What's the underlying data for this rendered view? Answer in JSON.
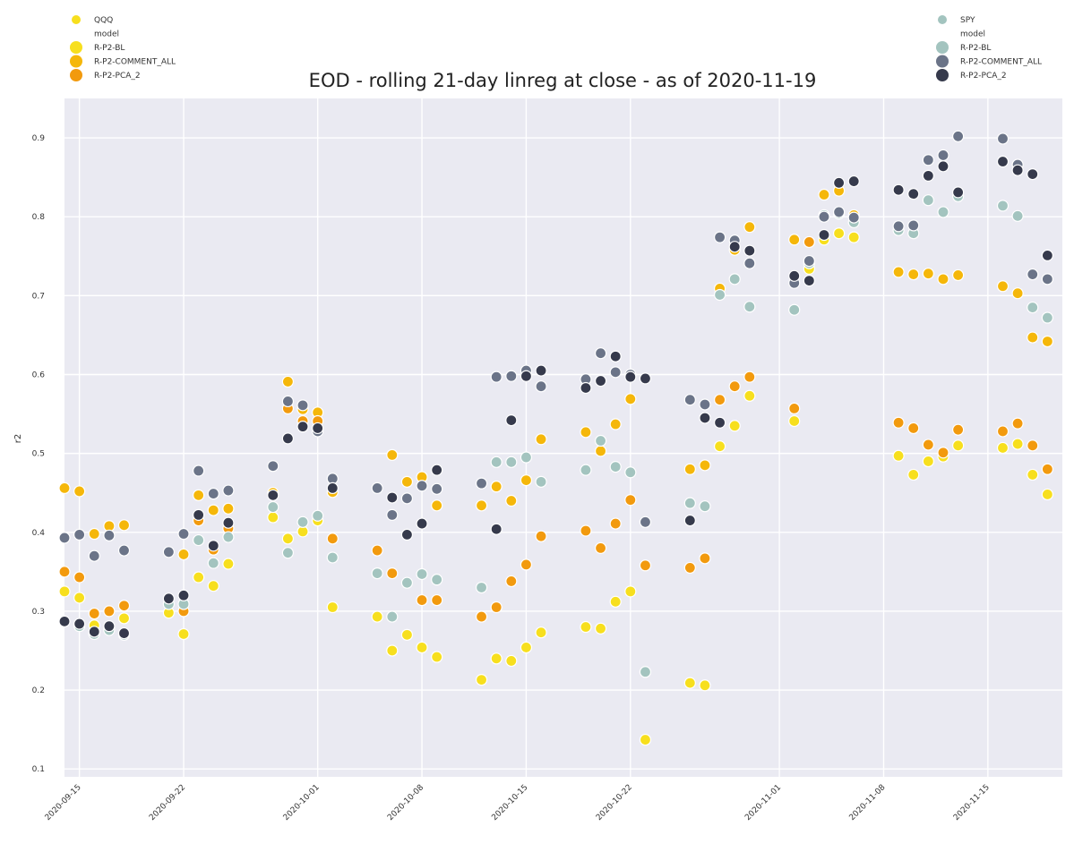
{
  "chart_data": {
    "type": "scatter",
    "title": "EOD - rolling 21-day linreg at close - as of 2020-11-19",
    "xlabel": "",
    "ylabel": "r2",
    "xlim": [
      "2020-09-14",
      "2020-11-20"
    ],
    "ylim": [
      0.09,
      0.95
    ],
    "yticks": [
      0.1,
      0.2,
      0.3,
      0.4,
      0.5,
      0.6,
      0.7,
      0.8,
      0.9
    ],
    "xticks": [
      "2020-09-15",
      "2020-09-22",
      "2020-10-01",
      "2020-10-08",
      "2020-10-15",
      "2020-10-22",
      "2020-11-01",
      "2020-11-08",
      "2020-11-15"
    ],
    "grid": true,
    "background": "#eaeaf2",
    "legends": [
      {
        "placement": "top-left",
        "entries": [
          {
            "label": "QQQ",
            "color": "#f7df1e",
            "kind": "hue"
          },
          {
            "label": "model",
            "color": null,
            "kind": "header"
          },
          {
            "label": "R-P2-BL",
            "color": "#f7df1e",
            "kind": "size"
          },
          {
            "label": "R-P2-COMMENT_ALL",
            "color": "#f5b70a",
            "kind": "size"
          },
          {
            "label": "R-P2-PCA_2",
            "color": "#f29a0e",
            "kind": "size"
          }
        ]
      },
      {
        "placement": "top-right",
        "entries": [
          {
            "label": "SPY",
            "color": "#a3c4bf",
            "kind": "hue"
          },
          {
            "label": "model",
            "color": null,
            "kind": "header"
          },
          {
            "label": "R-P2-BL",
            "color": "#a3c4bf",
            "kind": "size"
          },
          {
            "label": "R-P2-COMMENT_ALL",
            "color": "#6b7488",
            "kind": "size"
          },
          {
            "label": "R-P2-PCA_2",
            "color": "#363a4c",
            "kind": "size"
          }
        ]
      }
    ],
    "series": [
      {
        "name": "R-P2-BL",
        "ticker": "QQQ",
        "color": "#f7df1e",
        "x": [
          "2020-09-14",
          "2020-09-15",
          "2020-09-16",
          "2020-09-17",
          "2020-09-18",
          "2020-09-21",
          "2020-09-22",
          "2020-09-23",
          "2020-09-24",
          "2020-09-25",
          "2020-09-28",
          "2020-09-29",
          "2020-09-30",
          "2020-10-01",
          "2020-10-02",
          "2020-10-05",
          "2020-10-06",
          "2020-10-07",
          "2020-10-08",
          "2020-10-09",
          "2020-10-12",
          "2020-10-13",
          "2020-10-14",
          "2020-10-15",
          "2020-10-16",
          "2020-10-19",
          "2020-10-20",
          "2020-10-21",
          "2020-10-22",
          "2020-10-23",
          "2020-10-26",
          "2020-10-27",
          "2020-10-28",
          "2020-10-29",
          "2020-10-30",
          "2020-11-02",
          "2020-11-03",
          "2020-11-04",
          "2020-11-05",
          "2020-11-06",
          "2020-11-09",
          "2020-11-10",
          "2020-11-11",
          "2020-11-12",
          "2020-11-13",
          "2020-11-16",
          "2020-11-17",
          "2020-11-18",
          "2020-11-19"
        ],
        "y": [
          0.325,
          0.317,
          0.282,
          0.278,
          0.291,
          0.298,
          0.271,
          0.343,
          0.332,
          0.36,
          0.419,
          0.392,
          0.401,
          0.415,
          0.305,
          0.293,
          0.25,
          0.27,
          0.254,
          0.242,
          0.213,
          0.24,
          0.237,
          0.254,
          0.273,
          0.28,
          0.278,
          0.312,
          0.325,
          0.137,
          0.209,
          0.206,
          0.509,
          0.535,
          0.573,
          0.541,
          0.734,
          0.771,
          0.779,
          0.774,
          0.497,
          0.473,
          0.49,
          0.496,
          0.51,
          0.507,
          0.512,
          0.473,
          0.448
        ]
      },
      {
        "name": "R-P2-COMMENT_ALL",
        "ticker": "QQQ",
        "color": "#f5b70a",
        "x": [
          "2020-09-14",
          "2020-09-15",
          "2020-09-16",
          "2020-09-17",
          "2020-09-18",
          "2020-09-22",
          "2020-09-23",
          "2020-09-24",
          "2020-09-25",
          "2020-09-28",
          "2020-09-29",
          "2020-09-30",
          "2020-10-01",
          "2020-10-02",
          "2020-10-06",
          "2020-10-07",
          "2020-10-08",
          "2020-10-09",
          "2020-10-12",
          "2020-10-13",
          "2020-10-14",
          "2020-10-15",
          "2020-10-16",
          "2020-10-19",
          "2020-10-20",
          "2020-10-21",
          "2020-10-22",
          "2020-10-26",
          "2020-10-27",
          "2020-10-28",
          "2020-10-29",
          "2020-10-30",
          "2020-11-02",
          "2020-11-03",
          "2020-11-04",
          "2020-11-05",
          "2020-11-06",
          "2020-11-09",
          "2020-11-10",
          "2020-11-11",
          "2020-11-12",
          "2020-11-13",
          "2020-11-16",
          "2020-11-17",
          "2020-11-18",
          "2020-11-19"
        ],
        "y": [
          0.456,
          0.452,
          0.398,
          0.408,
          0.409,
          0.372,
          0.447,
          0.428,
          0.43,
          0.45,
          0.591,
          0.556,
          0.552,
          0.451,
          0.498,
          0.464,
          0.47,
          0.434,
          0.434,
          0.458,
          0.44,
          0.466,
          0.518,
          0.527,
          0.503,
          0.537,
          0.569,
          0.48,
          0.485,
          0.709,
          0.758,
          0.787,
          0.771,
          0.768,
          0.828,
          0.833,
          0.802,
          0.73,
          0.727,
          0.728,
          0.721,
          0.726,
          0.712,
          0.703,
          0.647,
          0.642
        ]
      },
      {
        "name": "R-P2-PCA_2",
        "ticker": "QQQ",
        "color": "#f29a0e",
        "x": [
          "2020-09-14",
          "2020-09-15",
          "2020-09-16",
          "2020-09-17",
          "2020-09-18",
          "2020-09-22",
          "2020-09-23",
          "2020-09-24",
          "2020-09-25",
          "2020-09-29",
          "2020-09-30",
          "2020-10-01",
          "2020-10-02",
          "2020-10-05",
          "2020-10-06",
          "2020-10-08",
          "2020-10-09",
          "2020-10-12",
          "2020-10-13",
          "2020-10-14",
          "2020-10-15",
          "2020-10-16",
          "2020-10-19",
          "2020-10-20",
          "2020-10-21",
          "2020-10-22",
          "2020-10-23",
          "2020-10-26",
          "2020-10-27",
          "2020-10-28",
          "2020-10-29",
          "2020-10-30",
          "2020-11-02",
          "2020-11-03",
          "2020-11-09",
          "2020-11-10",
          "2020-11-11",
          "2020-11-12",
          "2020-11-13",
          "2020-11-16",
          "2020-11-17",
          "2020-11-18",
          "2020-11-19"
        ],
        "y": [
          0.35,
          0.343,
          0.297,
          0.3,
          0.307,
          0.3,
          0.415,
          0.378,
          0.405,
          0.557,
          0.541,
          0.541,
          0.392,
          0.377,
          0.348,
          0.314,
          0.314,
          0.293,
          0.305,
          0.338,
          0.359,
          0.395,
          0.402,
          0.38,
          0.411,
          0.441,
          0.358,
          0.355,
          0.367,
          0.568,
          0.585,
          0.597,
          0.557,
          0.768,
          0.539,
          0.532,
          0.511,
          0.501,
          0.53,
          0.528,
          0.538,
          0.51,
          0.48
        ]
      },
      {
        "name": "R-P2-BL",
        "ticker": "SPY",
        "color": "#a3c4bf",
        "x": [
          "2020-09-15",
          "2020-09-16",
          "2020-09-17",
          "2020-09-18",
          "2020-09-21",
          "2020-09-22",
          "2020-09-23",
          "2020-09-24",
          "2020-09-25",
          "2020-09-28",
          "2020-09-29",
          "2020-09-30",
          "2020-10-01",
          "2020-10-02",
          "2020-10-05",
          "2020-10-06",
          "2020-10-07",
          "2020-10-08",
          "2020-10-09",
          "2020-10-12",
          "2020-10-13",
          "2020-10-14",
          "2020-10-15",
          "2020-10-16",
          "2020-10-19",
          "2020-10-20",
          "2020-10-21",
          "2020-10-22",
          "2020-10-23",
          "2020-10-26",
          "2020-10-27",
          "2020-10-28",
          "2020-10-29",
          "2020-10-30",
          "2020-11-02",
          "2020-11-03",
          "2020-11-04",
          "2020-11-05",
          "2020-11-06",
          "2020-11-09",
          "2020-11-10",
          "2020-11-11",
          "2020-11-12",
          "2020-11-13",
          "2020-11-16",
          "2020-11-17",
          "2020-11-18",
          "2020-11-19"
        ],
        "y": [
          0.281,
          0.271,
          0.276,
          0.27,
          0.309,
          0.309,
          0.39,
          0.361,
          0.394,
          0.432,
          0.374,
          0.413,
          0.421,
          0.368,
          0.348,
          0.293,
          0.336,
          0.347,
          0.34,
          0.33,
          0.489,
          0.489,
          0.495,
          0.464,
          0.479,
          0.516,
          0.483,
          0.476,
          0.223,
          0.437,
          0.433,
          0.701,
          0.721,
          0.686,
          0.682,
          0.741,
          0.802,
          0.804,
          0.793,
          0.783,
          0.779,
          0.821,
          0.806,
          0.826,
          0.814,
          0.801,
          0.685,
          0.672
        ]
      },
      {
        "name": "R-P2-COMMENT_ALL",
        "ticker": "SPY",
        "color": "#6b7488",
        "x": [
          "2020-09-14",
          "2020-09-15",
          "2020-09-16",
          "2020-09-17",
          "2020-09-18",
          "2020-09-21",
          "2020-09-22",
          "2020-09-23",
          "2020-09-24",
          "2020-09-25",
          "2020-09-28",
          "2020-09-29",
          "2020-09-30",
          "2020-10-01",
          "2020-10-02",
          "2020-10-05",
          "2020-10-06",
          "2020-10-07",
          "2020-10-08",
          "2020-10-09",
          "2020-10-12",
          "2020-10-13",
          "2020-10-14",
          "2020-10-15",
          "2020-10-16",
          "2020-10-19",
          "2020-10-20",
          "2020-10-21",
          "2020-10-22",
          "2020-10-23",
          "2020-10-26",
          "2020-10-27",
          "2020-10-28",
          "2020-10-29",
          "2020-10-30",
          "2020-11-02",
          "2020-11-03",
          "2020-11-04",
          "2020-11-05",
          "2020-11-06",
          "2020-11-09",
          "2020-11-10",
          "2020-11-11",
          "2020-11-12",
          "2020-11-13",
          "2020-11-16",
          "2020-11-17",
          "2020-11-18",
          "2020-11-19"
        ],
        "y": [
          0.393,
          0.397,
          0.37,
          0.396,
          0.377,
          0.375,
          0.398,
          0.478,
          0.449,
          0.453,
          0.484,
          0.566,
          0.561,
          0.528,
          0.468,
          0.456,
          0.422,
          0.443,
          0.459,
          0.455,
          0.462,
          0.597,
          0.598,
          0.605,
          0.585,
          0.594,
          0.627,
          0.603,
          0.6,
          0.413,
          0.568,
          0.562,
          0.774,
          0.77,
          0.741,
          0.716,
          0.744,
          0.8,
          0.806,
          0.799,
          0.788,
          0.789,
          0.872,
          0.878,
          0.902,
          0.899,
          0.866,
          0.727,
          0.721
        ]
      },
      {
        "name": "R-P2-PCA_2",
        "ticker": "SPY",
        "color": "#363a4c",
        "x": [
          "2020-09-14",
          "2020-09-15",
          "2020-09-16",
          "2020-09-17",
          "2020-09-18",
          "2020-09-21",
          "2020-09-22",
          "2020-09-23",
          "2020-09-24",
          "2020-09-25",
          "2020-09-28",
          "2020-09-29",
          "2020-09-30",
          "2020-10-01",
          "2020-10-02",
          "2020-10-06",
          "2020-10-07",
          "2020-10-08",
          "2020-10-09",
          "2020-10-13",
          "2020-10-14",
          "2020-10-15",
          "2020-10-16",
          "2020-10-19",
          "2020-10-20",
          "2020-10-21",
          "2020-10-22",
          "2020-10-23",
          "2020-10-26",
          "2020-10-27",
          "2020-10-28",
          "2020-10-29",
          "2020-10-30",
          "2020-11-02",
          "2020-11-03",
          "2020-11-04",
          "2020-11-05",
          "2020-11-06",
          "2020-11-09",
          "2020-11-10",
          "2020-11-11",
          "2020-11-12",
          "2020-11-13",
          "2020-11-16",
          "2020-11-17",
          "2020-11-18",
          "2020-11-19"
        ],
        "y": [
          0.287,
          0.284,
          0.274,
          0.281,
          0.272,
          0.316,
          0.32,
          0.422,
          0.383,
          0.412,
          0.447,
          0.519,
          0.534,
          0.532,
          0.456,
          0.444,
          0.397,
          0.411,
          0.479,
          0.404,
          0.542,
          0.598,
          0.605,
          0.583,
          0.592,
          0.623,
          0.597,
          0.595,
          0.415,
          0.545,
          0.539,
          0.762,
          0.757,
          0.725,
          0.719,
          0.777,
          0.843,
          0.845,
          0.834,
          0.829,
          0.852,
          0.864,
          0.831,
          0.87,
          0.859,
          0.854,
          0.751
        ]
      }
    ]
  }
}
